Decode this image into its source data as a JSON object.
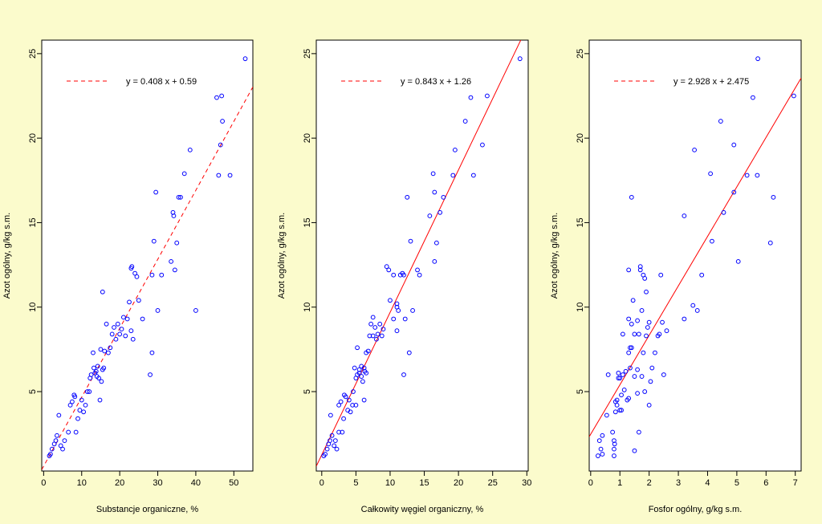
{
  "chart_data": [
    {
      "type": "scatter",
      "xlabel": "Substancje organiczne, %",
      "ylabel": "Azot ogólny, g/kg s.m.",
      "xlim": [
        -0.5,
        55
      ],
      "ylim": [
        0.3,
        25.8
      ],
      "xticks": [
        0,
        10,
        20,
        30,
        40,
        50
      ],
      "yticks": [
        5,
        10,
        15,
        20,
        25
      ],
      "legend": "y = 0.408 x + 0.59",
      "legend_position": "top-left",
      "fit": {
        "slope": 0.408,
        "intercept": 0.59,
        "style": "dashed"
      },
      "points": [
        [
          1.5,
          1.2
        ],
        [
          1.8,
          1.3
        ],
        [
          2.2,
          1.6
        ],
        [
          2.8,
          1.9
        ],
        [
          3.2,
          2.1
        ],
        [
          3.5,
          2.4
        ],
        [
          4,
          3.6
        ],
        [
          4.5,
          1.8
        ],
        [
          5,
          1.6
        ],
        [
          5.5,
          2.1
        ],
        [
          6.5,
          2.6
        ],
        [
          7,
          4.2
        ],
        [
          7.5,
          4.4
        ],
        [
          8,
          4.8
        ],
        [
          8.2,
          4.7
        ],
        [
          8.5,
          2.6
        ],
        [
          9,
          3.4
        ],
        [
          9.5,
          3.9
        ],
        [
          10,
          4.5
        ],
        [
          10.5,
          3.8
        ],
        [
          11,
          4.2
        ],
        [
          11.5,
          5.0
        ],
        [
          12,
          5.0
        ],
        [
          12.2,
          5.8
        ],
        [
          12.5,
          6.0
        ],
        [
          13,
          7.3
        ],
        [
          13.2,
          6.4
        ],
        [
          13.5,
          6.1
        ],
        [
          13.8,
          6.2
        ],
        [
          14,
          5.9
        ],
        [
          14.2,
          6.5
        ],
        [
          14.5,
          5.8
        ],
        [
          14.8,
          4.5
        ],
        [
          15,
          7.5
        ],
        [
          15.2,
          5.6
        ],
        [
          15.5,
          6.3
        ],
        [
          15.8,
          6.4
        ],
        [
          16,
          7.4
        ],
        [
          16.5,
          9.0
        ],
        [
          17,
          7.3
        ],
        [
          17.5,
          7.6
        ],
        [
          18,
          8.4
        ],
        [
          18.5,
          8.8
        ],
        [
          19,
          8.1
        ],
        [
          19.5,
          9.0
        ],
        [
          20,
          8.4
        ],
        [
          20.5,
          8.7
        ],
        [
          21,
          9.4
        ],
        [
          21.5,
          8.3
        ],
        [
          22,
          9.3
        ],
        [
          22.5,
          10.3
        ],
        [
          23,
          8.6
        ],
        [
          23.5,
          8.1
        ],
        [
          24,
          12.0
        ],
        [
          24.5,
          11.8
        ],
        [
          25,
          10.4
        ],
        [
          26,
          9.3
        ],
        [
          23,
          12.3
        ],
        [
          23.2,
          12.4
        ],
        [
          15.5,
          10.9
        ],
        [
          28,
          6.0
        ],
        [
          28.5,
          7.3
        ],
        [
          28.5,
          11.9
        ],
        [
          29,
          13.9
        ],
        [
          29.5,
          16.8
        ],
        [
          30,
          9.8
        ],
        [
          31,
          11.9
        ],
        [
          33.5,
          12.7
        ],
        [
          34,
          15.6
        ],
        [
          34.2,
          15.4
        ],
        [
          34.5,
          12.2
        ],
        [
          35,
          13.8
        ],
        [
          35.5,
          16.5
        ],
        [
          36,
          16.5
        ],
        [
          37,
          17.9
        ],
        [
          38.5,
          19.3
        ],
        [
          40,
          9.8
        ],
        [
          45.5,
          22.4
        ],
        [
          46,
          17.8
        ],
        [
          46.5,
          19.6
        ],
        [
          47,
          21.0
        ],
        [
          46.8,
          22.5
        ],
        [
          49,
          17.8
        ],
        [
          53,
          24.7
        ]
      ]
    },
    {
      "type": "scatter",
      "xlabel": "Całkowity węgiel organiczny, %",
      "ylabel": "Azot ogólny, g/kg s.m.",
      "xlim": [
        -0.8,
        30.2
      ],
      "ylim": [
        0.3,
        25.8
      ],
      "xticks": [
        0,
        5,
        10,
        15,
        20,
        25,
        30
      ],
      "yticks": [
        5,
        10,
        15,
        20,
        25
      ],
      "legend": "y = 0.843 x + 1.26",
      "legend_position": "top-left",
      "fit": {
        "slope": 0.843,
        "intercept": 1.26,
        "style": "solid"
      },
      "points": [
        [
          0.3,
          1.2
        ],
        [
          0.5,
          1.3
        ],
        [
          0.8,
          1.6
        ],
        [
          1.0,
          1.9
        ],
        [
          1.2,
          2.1
        ],
        [
          1.3,
          3.6
        ],
        [
          1.5,
          2.4
        ],
        [
          1.8,
          1.8
        ],
        [
          2.0,
          2.1
        ],
        [
          2.2,
          1.6
        ],
        [
          2.5,
          2.6
        ],
        [
          2.5,
          4.2
        ],
        [
          2.8,
          4.4
        ],
        [
          3.0,
          2.6
        ],
        [
          3.2,
          3.4
        ],
        [
          3.3,
          4.8
        ],
        [
          3.5,
          4.7
        ],
        [
          3.8,
          3.9
        ],
        [
          4.0,
          4.5
        ],
        [
          4.2,
          3.8
        ],
        [
          4.5,
          4.2
        ],
        [
          4.6,
          5.0
        ],
        [
          4.8,
          6.4
        ],
        [
          5.0,
          5.8
        ],
        [
          5.0,
          4.2
        ],
        [
          5.2,
          6.0
        ],
        [
          5.2,
          7.6
        ],
        [
          5.5,
          6.1
        ],
        [
          5.5,
          6.3
        ],
        [
          5.8,
          5.9
        ],
        [
          5.8,
          6.5
        ],
        [
          6.0,
          5.6
        ],
        [
          6.2,
          4.5
        ],
        [
          6.2,
          6.4
        ],
        [
          6.3,
          6.2
        ],
        [
          6.5,
          6.1
        ],
        [
          6.5,
          7.3
        ],
        [
          6.8,
          7.4
        ],
        [
          7.0,
          8.3
        ],
        [
          7.2,
          9.0
        ],
        [
          7.5,
          9.4
        ],
        [
          7.5,
          8.3
        ],
        [
          7.8,
          8.8
        ],
        [
          8.0,
          8.1
        ],
        [
          8.2,
          8.4
        ],
        [
          8.5,
          9.0
        ],
        [
          8.8,
          8.3
        ],
        [
          9.0,
          8.7
        ],
        [
          9.5,
          12.4
        ],
        [
          9.8,
          12.2
        ],
        [
          10.0,
          10.4
        ],
        [
          10.5,
          11.9
        ],
        [
          10.5,
          9.3
        ],
        [
          11.0,
          10.2
        ],
        [
          11.0,
          8.6
        ],
        [
          11.2,
          9.8
        ],
        [
          11.5,
          11.9
        ],
        [
          11.8,
          12.0
        ],
        [
          12.0,
          6.0
        ],
        [
          12.2,
          9.3
        ],
        [
          12.5,
          16.5
        ],
        [
          12.8,
          7.3
        ],
        [
          13.0,
          13.9
        ],
        [
          13.3,
          9.8
        ],
        [
          14.0,
          12.2
        ],
        [
          14.3,
          11.9
        ],
        [
          15.8,
          15.4
        ],
        [
          16.3,
          17.9
        ],
        [
          16.5,
          12.7
        ],
        [
          16.5,
          16.8
        ],
        [
          16.8,
          13.8
        ],
        [
          17.3,
          15.6
        ],
        [
          17.8,
          16.5
        ],
        [
          19.2,
          17.8
        ],
        [
          19.5,
          19.3
        ],
        [
          21.0,
          21.0
        ],
        [
          21.8,
          22.4
        ],
        [
          22.2,
          17.8
        ],
        [
          23.5,
          19.6
        ],
        [
          24.2,
          22.5
        ],
        [
          29.0,
          24.7
        ],
        [
          11.0,
          10.0
        ],
        [
          12.0,
          11.9
        ]
      ]
    },
    {
      "type": "scatter",
      "xlabel": "Fosfor ogólny, g/kg s.m.",
      "ylabel": "Azot ogólny, g/kg s.m.",
      "xlim": [
        -0.05,
        7.2
      ],
      "ylim": [
        0.3,
        25.8
      ],
      "xticks": [
        0,
        1,
        2,
        3,
        4,
        5,
        6,
        7
      ],
      "yticks": [
        5,
        10,
        15,
        20,
        25
      ],
      "legend": "y = 2.928 x + 2.475",
      "legend_position": "top-left",
      "fit": {
        "slope": 2.928,
        "intercept": 2.475,
        "style": "solid"
      },
      "points": [
        [
          0.25,
          1.2
        ],
        [
          0.3,
          2.1
        ],
        [
          0.35,
          1.6
        ],
        [
          0.4,
          1.3
        ],
        [
          0.4,
          2.4
        ],
        [
          0.55,
          3.6
        ],
        [
          0.6,
          6.0
        ],
        [
          0.75,
          2.6
        ],
        [
          0.8,
          1.6
        ],
        [
          0.8,
          2.1
        ],
        [
          0.8,
          1.2
        ],
        [
          0.82,
          1.9
        ],
        [
          0.85,
          4.4
        ],
        [
          0.85,
          3.8
        ],
        [
          0.9,
          4.5
        ],
        [
          0.9,
          4.2
        ],
        [
          0.95,
          6.1
        ],
        [
          1.0,
          5.8
        ],
        [
          1.0,
          3.9
        ],
        [
          1.05,
          4.8
        ],
        [
          1.05,
          3.9
        ],
        [
          1.1,
          6.0
        ],
        [
          1.1,
          8.4
        ],
        [
          1.15,
          5.1
        ],
        [
          1.2,
          6.2
        ],
        [
          1.25,
          4.5
        ],
        [
          1.3,
          4.6
        ],
        [
          1.3,
          7.3
        ],
        [
          1.3,
          9.3
        ],
        [
          1.3,
          12.2
        ],
        [
          1.35,
          6.4
        ],
        [
          1.35,
          7.6
        ],
        [
          1.4,
          7.6
        ],
        [
          1.4,
          9.0
        ],
        [
          1.4,
          16.5
        ],
        [
          1.45,
          10.4
        ],
        [
          1.5,
          8.4
        ],
        [
          1.5,
          5.9
        ],
        [
          1.6,
          9.2
        ],
        [
          1.6,
          6.3
        ],
        [
          1.65,
          2.6
        ],
        [
          1.65,
          8.4
        ],
        [
          1.7,
          12.4
        ],
        [
          1.7,
          12.2
        ],
        [
          1.75,
          5.9
        ],
        [
          1.75,
          9.8
        ],
        [
          1.8,
          7.3
        ],
        [
          1.8,
          11.9
        ],
        [
          1.85,
          11.7
        ],
        [
          1.9,
          10.9
        ],
        [
          1.9,
          8.3
        ],
        [
          1.95,
          8.8
        ],
        [
          2.0,
          4.2
        ],
        [
          2.0,
          9.1
        ],
        [
          2.05,
          5.6
        ],
        [
          2.1,
          6.4
        ],
        [
          2.2,
          7.3
        ],
        [
          2.3,
          8.3
        ],
        [
          2.35,
          8.4
        ],
        [
          2.4,
          11.9
        ],
        [
          2.45,
          9.1
        ],
        [
          2.5,
          6.0
        ],
        [
          2.6,
          8.6
        ],
        [
          3.2,
          9.3
        ],
        [
          3.2,
          15.4
        ],
        [
          3.5,
          10.1
        ],
        [
          3.55,
          19.3
        ],
        [
          3.65,
          9.8
        ],
        [
          3.8,
          11.9
        ],
        [
          4.1,
          17.9
        ],
        [
          4.15,
          13.9
        ],
        [
          4.45,
          21.0
        ],
        [
          4.55,
          15.6
        ],
        [
          4.9,
          16.8
        ],
        [
          4.9,
          19.6
        ],
        [
          5.05,
          12.7
        ],
        [
          5.35,
          17.8
        ],
        [
          5.55,
          22.4
        ],
        [
          5.7,
          17.8
        ],
        [
          5.72,
          24.7
        ],
        [
          6.15,
          13.8
        ],
        [
          6.25,
          16.5
        ],
        [
          6.95,
          22.5
        ],
        [
          1.5,
          1.5
        ],
        [
          1.6,
          4.9
        ],
        [
          1.85,
          5.0
        ],
        [
          0.95,
          5.8
        ]
      ]
    }
  ]
}
